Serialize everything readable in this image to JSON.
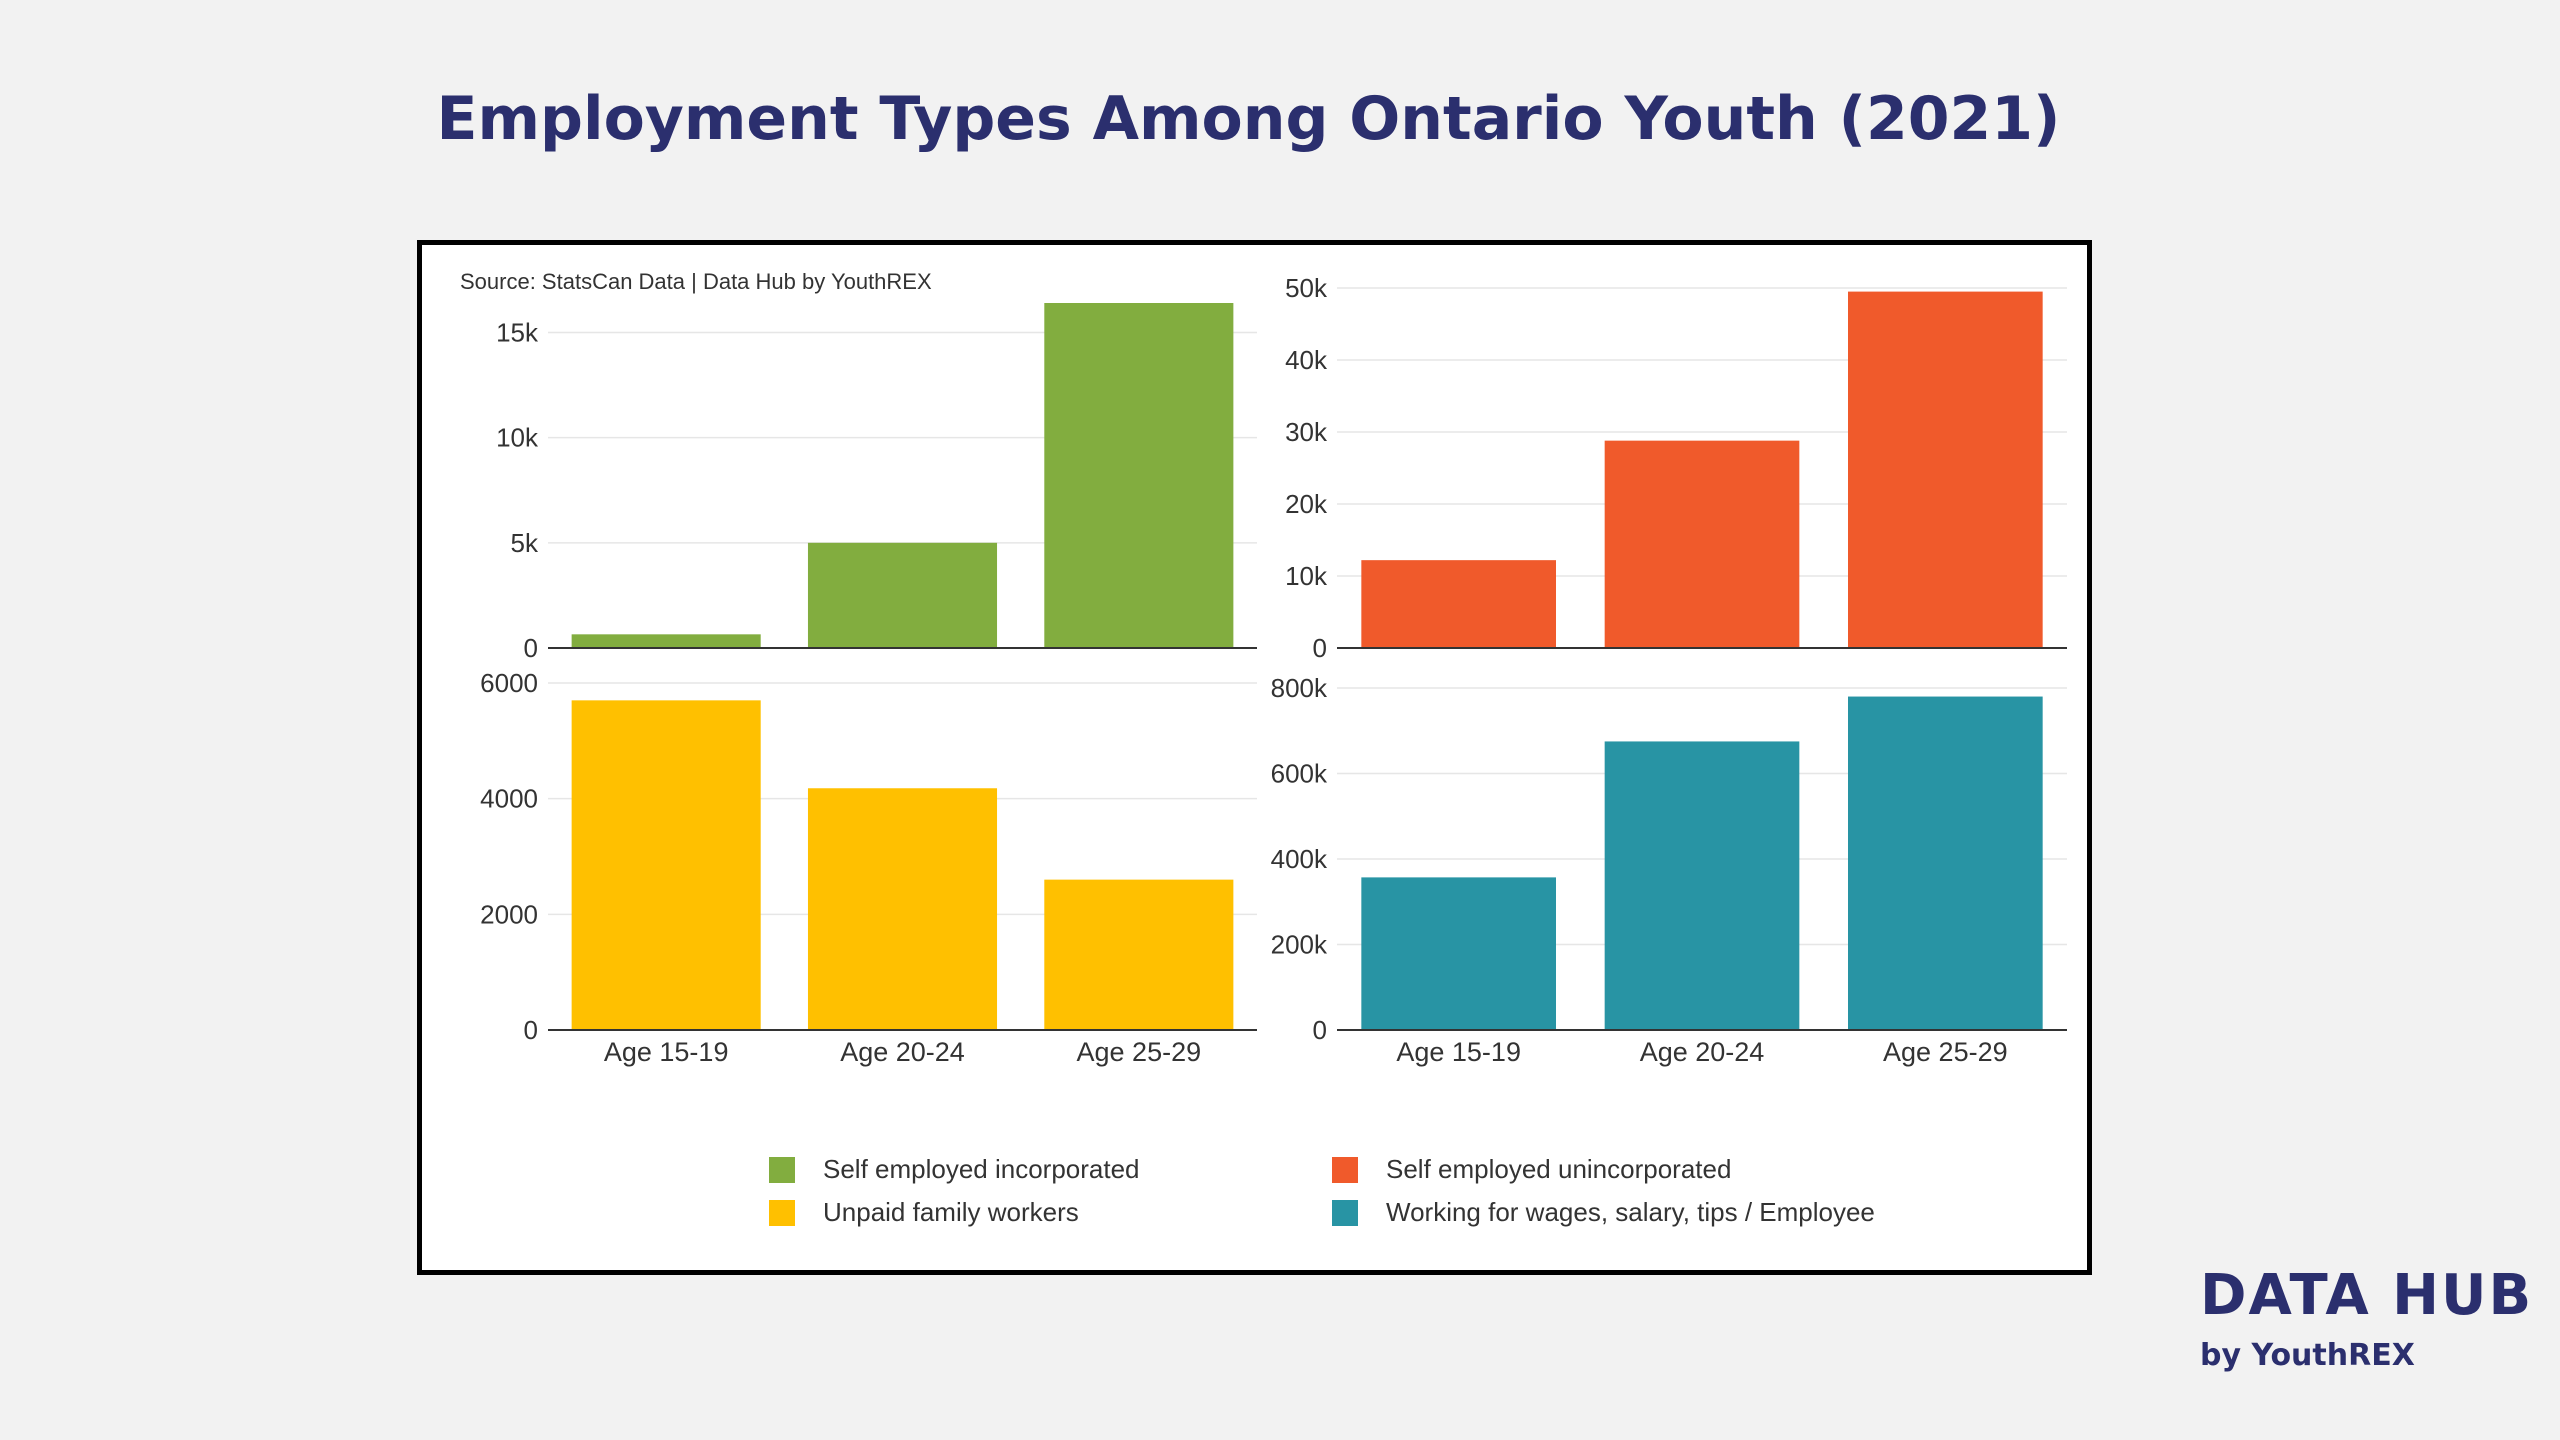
{
  "page": {
    "title": "Employment Types Among Ontario Youth (2021)",
    "source": "Source: StatsCan Data | Data Hub by YouthREX"
  },
  "brand": {
    "main": "DATA HUB",
    "sub": "by YouthREX"
  },
  "chart_data": [
    {
      "type": "bar",
      "name": "Self employed incorporated",
      "color": "#82ad3f",
      "categories": [
        "Age 15-19",
        "Age 20-24",
        "Age 25-29"
      ],
      "values": [
        650,
        5000,
        16400
      ],
      "ylim": [
        0,
        16400
      ],
      "yticks": [
        0,
        5000,
        10000,
        15000
      ],
      "ytick_labels": [
        "0",
        "5k",
        "10k",
        "15k"
      ]
    },
    {
      "type": "bar",
      "name": "Self employed unincorporated",
      "color": "#f05a2b",
      "categories": [
        "Age 15-19",
        "Age 20-24",
        "Age 25-29"
      ],
      "values": [
        12200,
        28800,
        49500
      ],
      "ylim": [
        0,
        50000
      ],
      "yticks": [
        0,
        10000,
        20000,
        30000,
        40000,
        50000
      ],
      "ytick_labels": [
        "0",
        "10k",
        "20k",
        "30k",
        "40k",
        "50k"
      ]
    },
    {
      "type": "bar",
      "name": "Unpaid family workers",
      "color": "#ffc000",
      "categories": [
        "Age 15-19",
        "Age 20-24",
        "Age 25-29"
      ],
      "values": [
        5700,
        4180,
        2600
      ],
      "ylim": [
        0,
        6000
      ],
      "yticks": [
        0,
        2000,
        4000,
        6000
      ],
      "ytick_labels": [
        "0",
        "2000",
        "4000",
        "6000"
      ]
    },
    {
      "type": "bar",
      "name": "Working for wages, salary, tips / Employee",
      "color": "#2894a4",
      "categories": [
        "Age 15-19",
        "Age 20-24",
        "Age 25-29"
      ],
      "values": [
        357000,
        675000,
        780000
      ],
      "ylim": [
        0,
        800000
      ],
      "yticks": [
        0,
        200000,
        400000,
        600000,
        800000
      ],
      "ytick_labels": [
        "0",
        "200k",
        "400k",
        "600k",
        "800k"
      ]
    }
  ],
  "legend": [
    {
      "label": "Self employed incorporated",
      "color": "#82ad3f"
    },
    {
      "label": "Self employed unincorporated",
      "color": "#f05a2b"
    },
    {
      "label": "Unpaid family workers",
      "color": "#ffc000"
    },
    {
      "label": "Working for wages, salary, tips / Employee",
      "color": "#2894a4"
    }
  ]
}
